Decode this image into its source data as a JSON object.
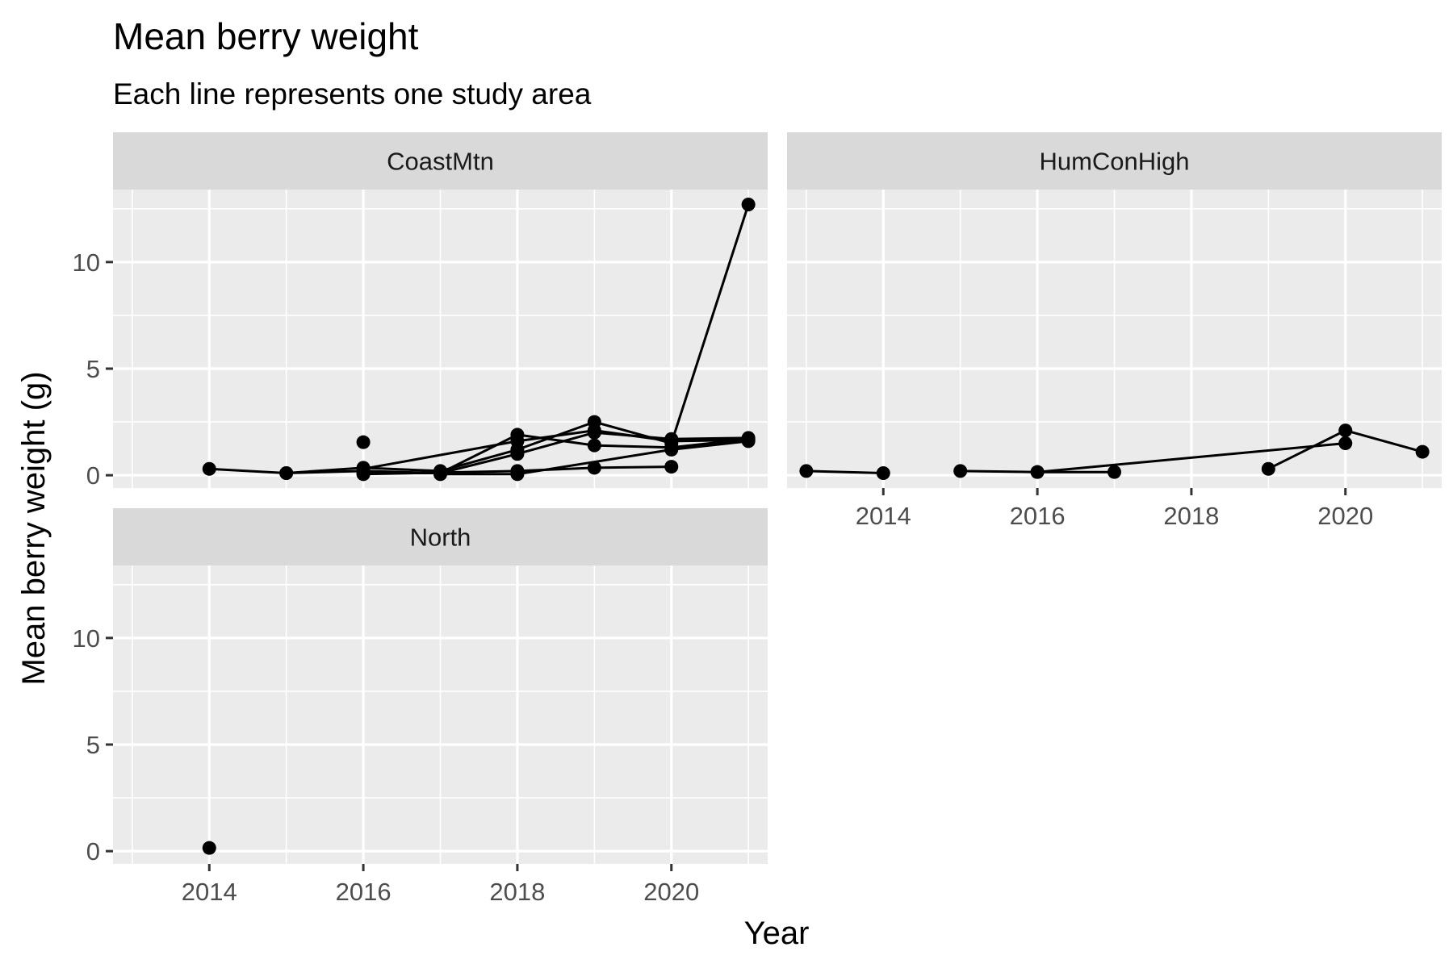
{
  "chart_data": {
    "type": "line",
    "title": "Mean berry weight",
    "subtitle": "Each line represents one study area",
    "xlabel": "Year",
    "ylabel": "Mean berry weight (g)",
    "xlim": [
      2012.75,
      2021.25
    ],
    "ylim": [
      -0.6,
      13.4
    ],
    "x_ticks": [
      2014,
      2016,
      2018,
      2020
    ],
    "y_ticks": [
      0,
      5,
      10
    ],
    "grid": true,
    "legend": "none",
    "colors": {
      "panel_background": "#ebebeb",
      "strip_background": "#d9d9d9",
      "grid": "#ffffff",
      "series": "#000000"
    },
    "facets": [
      {
        "name": "CoastMtn",
        "series": [
          {
            "points": [
              [
                2014,
                0.3
              ],
              [
                2015,
                0.1
              ],
              [
                2016,
                0.2
              ],
              [
                2017,
                0.1
              ],
              [
                2018,
                1.9
              ],
              [
                2019,
                1.4
              ],
              [
                2020,
                1.3
              ],
              [
                2021,
                1.7
              ]
            ]
          },
          {
            "points": [
              [
                2015,
                0.1
              ],
              [
                2016,
                0.35
              ],
              [
                2017,
                0.2
              ],
              [
                2018,
                1.2
              ],
              [
                2019,
                2.5
              ],
              [
                2020,
                1.5
              ],
              [
                2021,
                12.7
              ]
            ]
          },
          {
            "points": [
              [
                2016,
                0.1
              ],
              [
                2017,
                0.1
              ],
              [
                2018,
                1.0
              ],
              [
                2019,
                2.0
              ],
              [
                2020,
                1.7
              ],
              [
                2021,
                1.75
              ]
            ]
          },
          {
            "points": [
              [
                2016,
                0.3
              ],
              [
                2018,
                1.6
              ],
              [
                2019,
                2.1
              ],
              [
                2020,
                1.6
              ],
              [
                2021,
                1.65
              ]
            ]
          },
          {
            "points": [
              [
                2016,
                0.05
              ],
              [
                2018,
                0.2
              ],
              [
                2019,
                0.35
              ],
              [
                2020,
                0.4
              ]
            ]
          },
          {
            "points": [
              [
                2017,
                0.05
              ],
              [
                2018,
                0.05
              ],
              [
                2020,
                1.2
              ],
              [
                2021,
                1.6
              ]
            ]
          },
          {
            "points": [
              [
                2016,
                1.55
              ]
            ]
          }
        ]
      },
      {
        "name": "HumConHigh",
        "series": [
          {
            "points": [
              [
                2013,
                0.2
              ],
              [
                2014,
                0.1
              ]
            ]
          },
          {
            "points": [
              [
                2015,
                0.2
              ],
              [
                2016,
                0.15
              ],
              [
                2017,
                0.15
              ]
            ]
          },
          {
            "points": [
              [
                2016,
                0.15
              ],
              [
                2020,
                1.5
              ]
            ]
          },
          {
            "points": [
              [
                2019,
                0.3
              ],
              [
                2020,
                2.1
              ],
              [
                2021,
                1.1
              ]
            ]
          }
        ]
      },
      {
        "name": "North",
        "series": [
          {
            "points": [
              [
                2014,
                0.15
              ]
            ]
          }
        ]
      }
    ]
  }
}
